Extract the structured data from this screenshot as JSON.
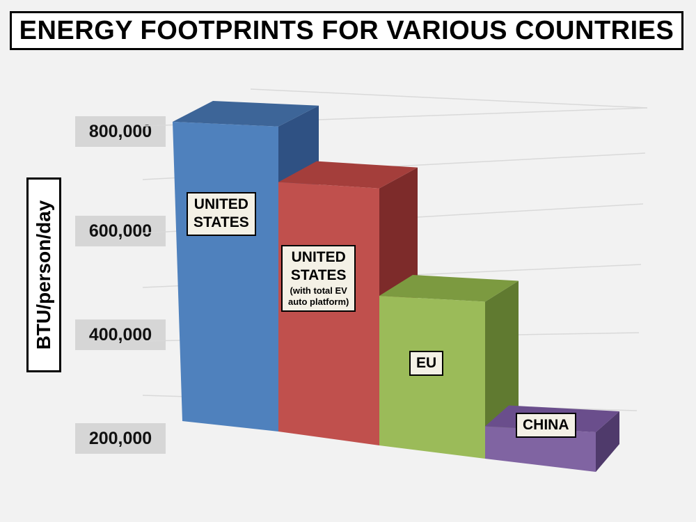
{
  "chart_data": {
    "type": "bar",
    "title": "ENERGY FOOTPRINTS FOR VARIOUS COUNTRIES",
    "xlabel": "",
    "ylabel": "BTU/person/day",
    "yticks": [
      "200,000",
      "400,000",
      "600,000",
      "800,000"
    ],
    "ylim": [
      200000,
      800000
    ],
    "categories": [
      "UNITED STATES",
      "UNITED STATES (with total EV auto platform)",
      "EU",
      "CHINA"
    ],
    "values": [
      800000,
      700000,
      500000,
      230000
    ],
    "grid": true,
    "bars": [
      {
        "label_lines": [
          "UNITED",
          "STATES"
        ],
        "note_lines": [],
        "color": "#4f81bd",
        "top_color": "#3d6598",
        "side_color": "#2f5183"
      },
      {
        "label_lines": [
          "UNITED",
          "STATES"
        ],
        "note_lines": [
          "(with total EV",
          "auto platform)"
        ],
        "color": "#c0504d",
        "top_color": "#a43e3b",
        "side_color": "#7d2b2a"
      },
      {
        "label_lines": [
          "EU"
        ],
        "note_lines": [],
        "color": "#9bbb59",
        "top_color": "#7c9a40",
        "side_color": "#607a30"
      },
      {
        "label_lines": [
          "CHINA"
        ],
        "note_lines": [],
        "color": "#8064a2",
        "top_color": "#6a4e8c",
        "side_color": "#4f3a6b"
      }
    ]
  }
}
